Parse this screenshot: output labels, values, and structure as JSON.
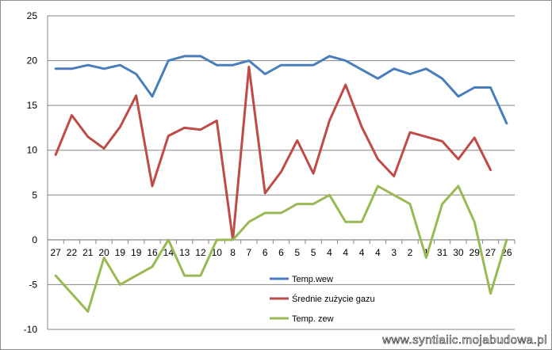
{
  "chart_data": {
    "type": "line",
    "categories": [
      "27",
      "22",
      "21",
      "20",
      "19",
      "19",
      "16",
      "14",
      "13",
      "12",
      "10",
      "8",
      "7",
      "6",
      "6",
      "5",
      "5",
      "4",
      "4",
      "4",
      "4",
      "3",
      "2",
      "1",
      "31",
      "30",
      "29",
      "27",
      "26"
    ],
    "series": [
      {
        "name": "Temp.wew",
        "color": "#4a7ebb",
        "values": [
          19.1,
          19.1,
          19.5,
          19.1,
          19.5,
          18.5,
          16,
          20,
          20.5,
          20.5,
          19.5,
          19.5,
          20,
          18.5,
          19.5,
          19.5,
          19.5,
          20.5,
          20,
          19,
          18,
          19.1,
          18.5,
          19.1,
          18,
          16,
          17,
          17,
          13
        ]
      },
      {
        "name": "Średnie zużycie gazu",
        "color": "#be4b48",
        "values": [
          9.5,
          13.9,
          11.5,
          10.2,
          12.6,
          16.1,
          6,
          11.6,
          12.5,
          12.3,
          13.3,
          0,
          19.3,
          5.2,
          7.6,
          11.1,
          7.4,
          13.3,
          17.3,
          12.6,
          9,
          7.1,
          12,
          11.5,
          11,
          9,
          11.4,
          7.8,
          null
        ]
      },
      {
        "name": "Temp. zew",
        "color": "#98b954",
        "values": [
          -4,
          -6,
          -8,
          -2,
          -5,
          -4,
          -3,
          0,
          -4,
          -4,
          0,
          0,
          2,
          3,
          3,
          4,
          4,
          5,
          2,
          2,
          6,
          5,
          4,
          -2,
          4,
          6,
          2,
          -6,
          0
        ]
      }
    ],
    "ylim": [
      -10,
      25
    ],
    "yticks": [
      -10,
      -5,
      0,
      5,
      10,
      15,
      20,
      25
    ],
    "grid": true,
    "legend": "center-bottom"
  },
  "watermark": "www.syntiaiic.mojabudowa.pl"
}
